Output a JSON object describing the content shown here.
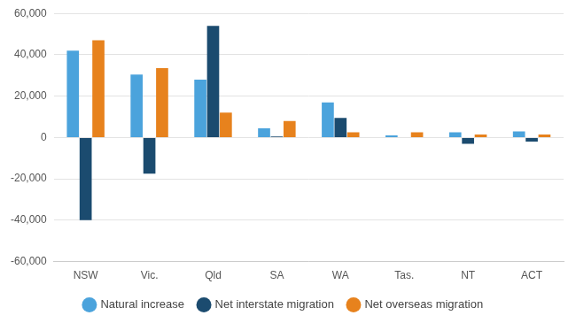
{
  "chart_data": {
    "type": "bar",
    "categories": [
      "NSW",
      "Vic.",
      "Qld",
      "SA",
      "WA",
      "Tas.",
      "NT",
      "ACT"
    ],
    "series": [
      {
        "name": "Natural increase",
        "color": "#4ba3dc",
        "values": [
          42000,
          30500,
          28000,
          4500,
          17000,
          1000,
          2500,
          3000
        ]
      },
      {
        "name": "Net interstate migration",
        "color": "#1b4b6f",
        "values": [
          -40000,
          -17500,
          54000,
          500,
          9500,
          0,
          -3000,
          -2000
        ]
      },
      {
        "name": "Net overseas migration",
        "color": "#e7821d",
        "values": [
          47000,
          33500,
          12000,
          8000,
          2500,
          2500,
          1500,
          1500
        ]
      }
    ],
    "ylim": [
      -60000,
      60000
    ],
    "yticks": [
      {
        "value": -60000,
        "label": "-60,000"
      },
      {
        "value": -40000,
        "label": "-40,000"
      },
      {
        "value": -20000,
        "label": "-20,000"
      },
      0,
      {
        "value": 20000,
        "label": "20,000"
      },
      {
        "value": 40000,
        "label": "40,000"
      },
      {
        "value": 60000,
        "label": "60,000"
      }
    ],
    "grid": true,
    "legend": "bottom"
  }
}
